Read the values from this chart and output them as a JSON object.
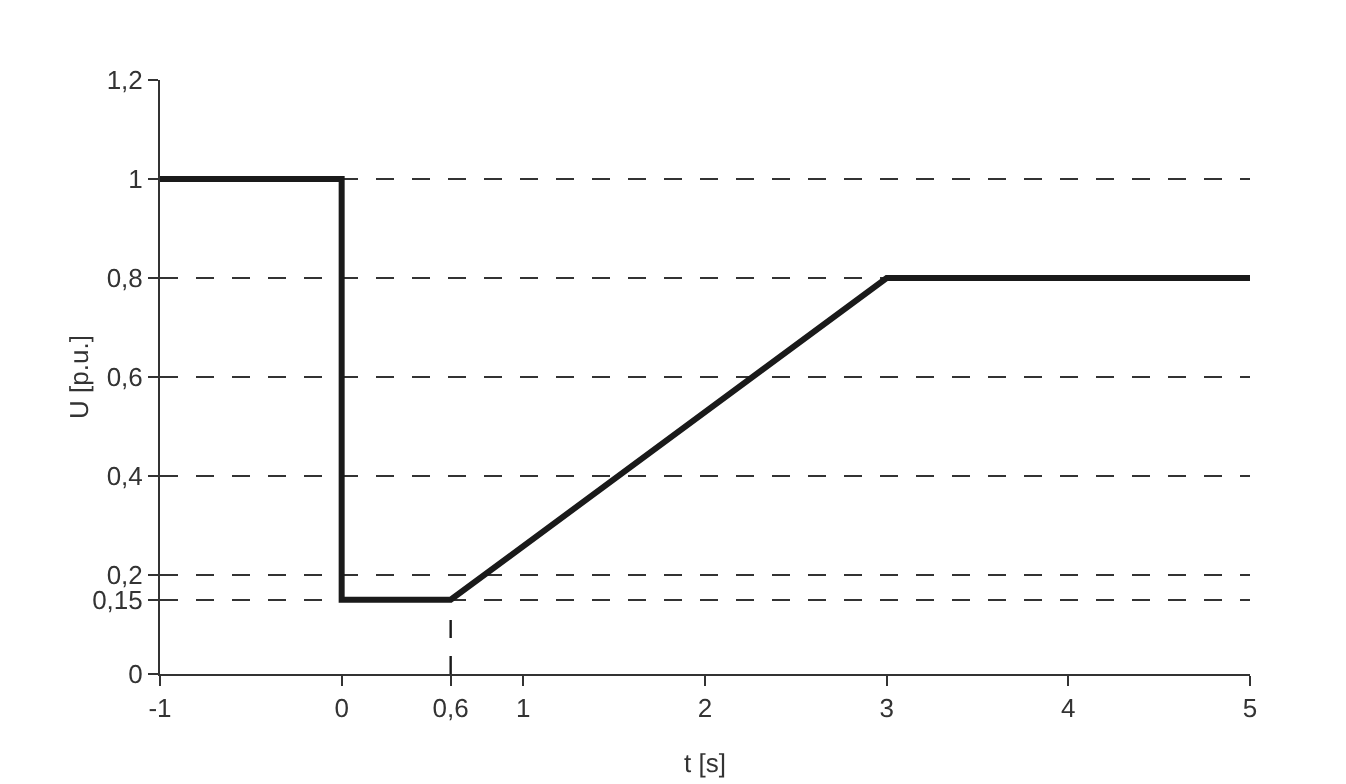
{
  "chart_data": {
    "type": "line",
    "x": [
      -1,
      0,
      0,
      0.6,
      3,
      5
    ],
    "series": [
      {
        "color": "#1a1a1a",
        "values": [
          1,
          1,
          0.15,
          0.15,
          0.8,
          0.8
        ]
      }
    ],
    "xlabel": "t [s]",
    "ylabel": "U [p.u.]",
    "xlim": [
      -1,
      5
    ],
    "xticks": [
      -1,
      0,
      {
        "value": 0.6,
        "label": "0,6"
      },
      1,
      2,
      3,
      4,
      5
    ],
    "ylim": [
      0,
      1.2
    ],
    "yticks": [
      0,
      {
        "value": 0.15,
        "label": "0,15"
      },
      {
        "value": 0.2,
        "label": "0,2"
      },
      {
        "value": 0.4,
        "label": "0,4"
      },
      {
        "value": 0.6,
        "label": "0,6"
      },
      {
        "value": 0.8,
        "label": "0,8"
      },
      1,
      {
        "value": 1.2,
        "label": "1,2"
      }
    ],
    "grid": "y",
    "ref_lines": [
      {
        "axis": "x",
        "value": 0.6,
        "line_style": "dashed"
      }
    ],
    "marker": "none",
    "line_style": "solid"
  }
}
